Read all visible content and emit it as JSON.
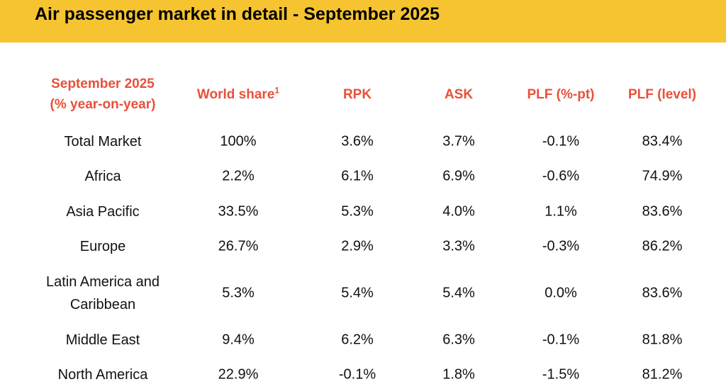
{
  "title": "Air passenger market in detail - September 2025",
  "colors": {
    "title_bar": "#f6c431",
    "header_text": "#e8503a",
    "body_text": "#111111"
  },
  "table": {
    "header": {
      "period_line1": "September 2025",
      "period_line2": "(% year-on-year)",
      "world_share": "World share",
      "world_share_footnote": "1",
      "rpk": "RPK",
      "ask": "ASK",
      "plf_pt": "PLF (%-pt)",
      "plf_level": "PLF (level)"
    },
    "rows": [
      {
        "region": "Total Market",
        "region_line2": "",
        "world_share": "100%",
        "rpk": "3.6%",
        "ask": "3.7%",
        "plf_pt": "-0.1%",
        "plf_level": "83.4%"
      },
      {
        "region": "Africa",
        "region_line2": "",
        "world_share": "2.2%",
        "rpk": "6.1%",
        "ask": "6.9%",
        "plf_pt": "-0.6%",
        "plf_level": "74.9%"
      },
      {
        "region": "Asia Pacific",
        "region_line2": "",
        "world_share": "33.5%",
        "rpk": "5.3%",
        "ask": "4.0%",
        "plf_pt": "1.1%",
        "plf_level": "83.6%"
      },
      {
        "region": "Europe",
        "region_line2": "",
        "world_share": "26.7%",
        "rpk": "2.9%",
        "ask": "3.3%",
        "plf_pt": "-0.3%",
        "plf_level": "86.2%"
      },
      {
        "region": "Latin America and",
        "region_line2": "Caribbean",
        "world_share": "5.3%",
        "rpk": "5.4%",
        "ask": "5.4%",
        "plf_pt": "0.0%",
        "plf_level": "83.6%"
      },
      {
        "region": "Middle East",
        "region_line2": "",
        "world_share": "9.4%",
        "rpk": "6.2%",
        "ask": "6.3%",
        "plf_pt": "-0.1%",
        "plf_level": "81.8%"
      },
      {
        "region": "North America",
        "region_line2": "",
        "world_share": "22.9%",
        "rpk": "-0.1%",
        "ask": "1.8%",
        "plf_pt": "-1.5%",
        "plf_level": "81.2%"
      }
    ]
  }
}
